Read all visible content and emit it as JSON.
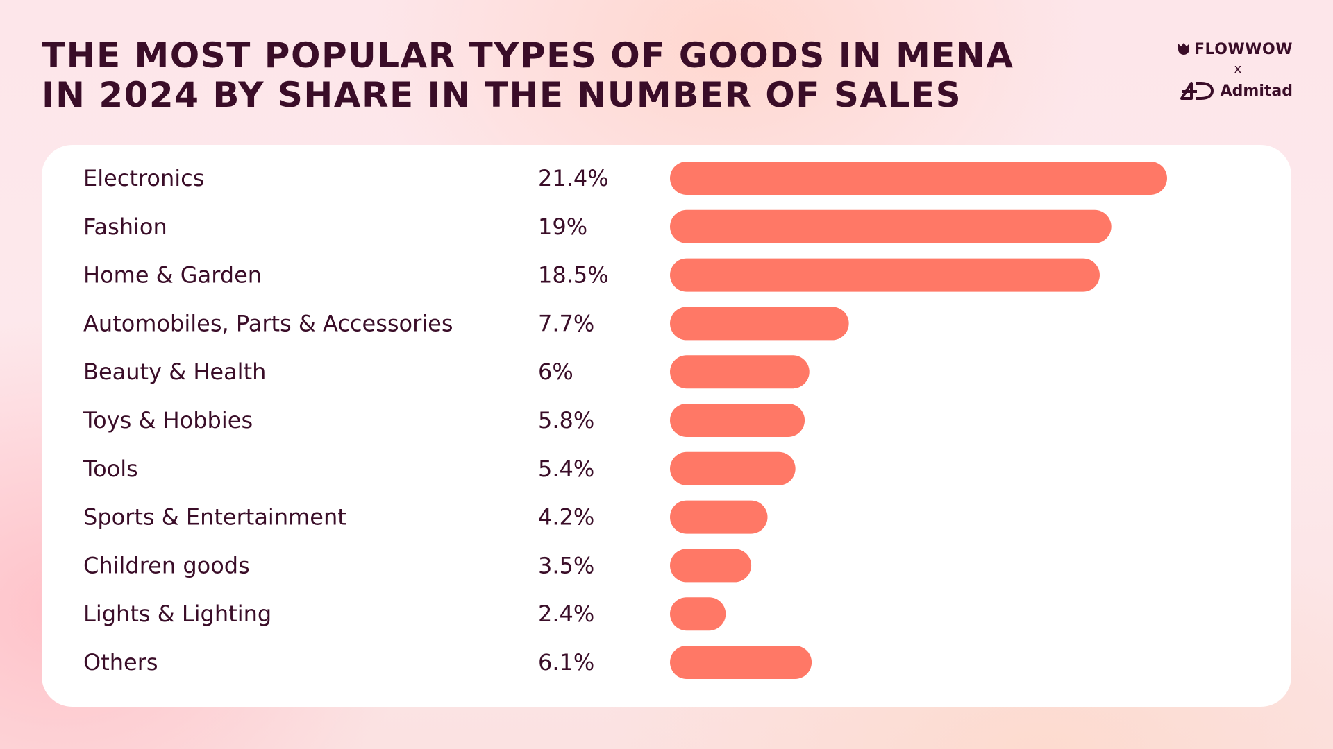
{
  "header": {
    "title_line1": "THE MOST POPULAR TYPES OF GOODS IN MENA",
    "title_line2": "IN 2024 BY SHARE IN THE NUMBER OF SALES"
  },
  "logos": {
    "flowwow": "FLOWWOW",
    "separator": "x",
    "admitad": "Admitad"
  },
  "colors": {
    "bar": "#ff7866",
    "text": "#3a0d28",
    "card": "#ffffff"
  },
  "chart_data": {
    "type": "bar",
    "orientation": "horizontal",
    "title": "THE MOST POPULAR TYPES OF GOODS IN MENA IN 2024 BY SHARE IN THE NUMBER OF SALES",
    "categories": [
      "Electronics",
      "Fashion",
      "Home & Garden",
      "Automobiles, Parts & Accessories",
      "Beauty & Health",
      "Toys & Hobbies",
      "Tools",
      "Sports & Entertainment",
      "Children goods",
      "Lights & Lighting",
      "Others"
    ],
    "values": [
      21.4,
      19,
      18.5,
      7.7,
      6,
      5.8,
      5.4,
      4.2,
      3.5,
      2.4,
      6.1
    ],
    "value_labels": [
      "21.4%",
      "19%",
      "18.5%",
      "7.7%",
      "6%",
      "5.8%",
      "5.4%",
      "4.2%",
      "3.5%",
      "2.4%",
      "6.1%"
    ],
    "unit": "%",
    "xlim": [
      0,
      21.4
    ],
    "grid": false,
    "legend": "none"
  }
}
